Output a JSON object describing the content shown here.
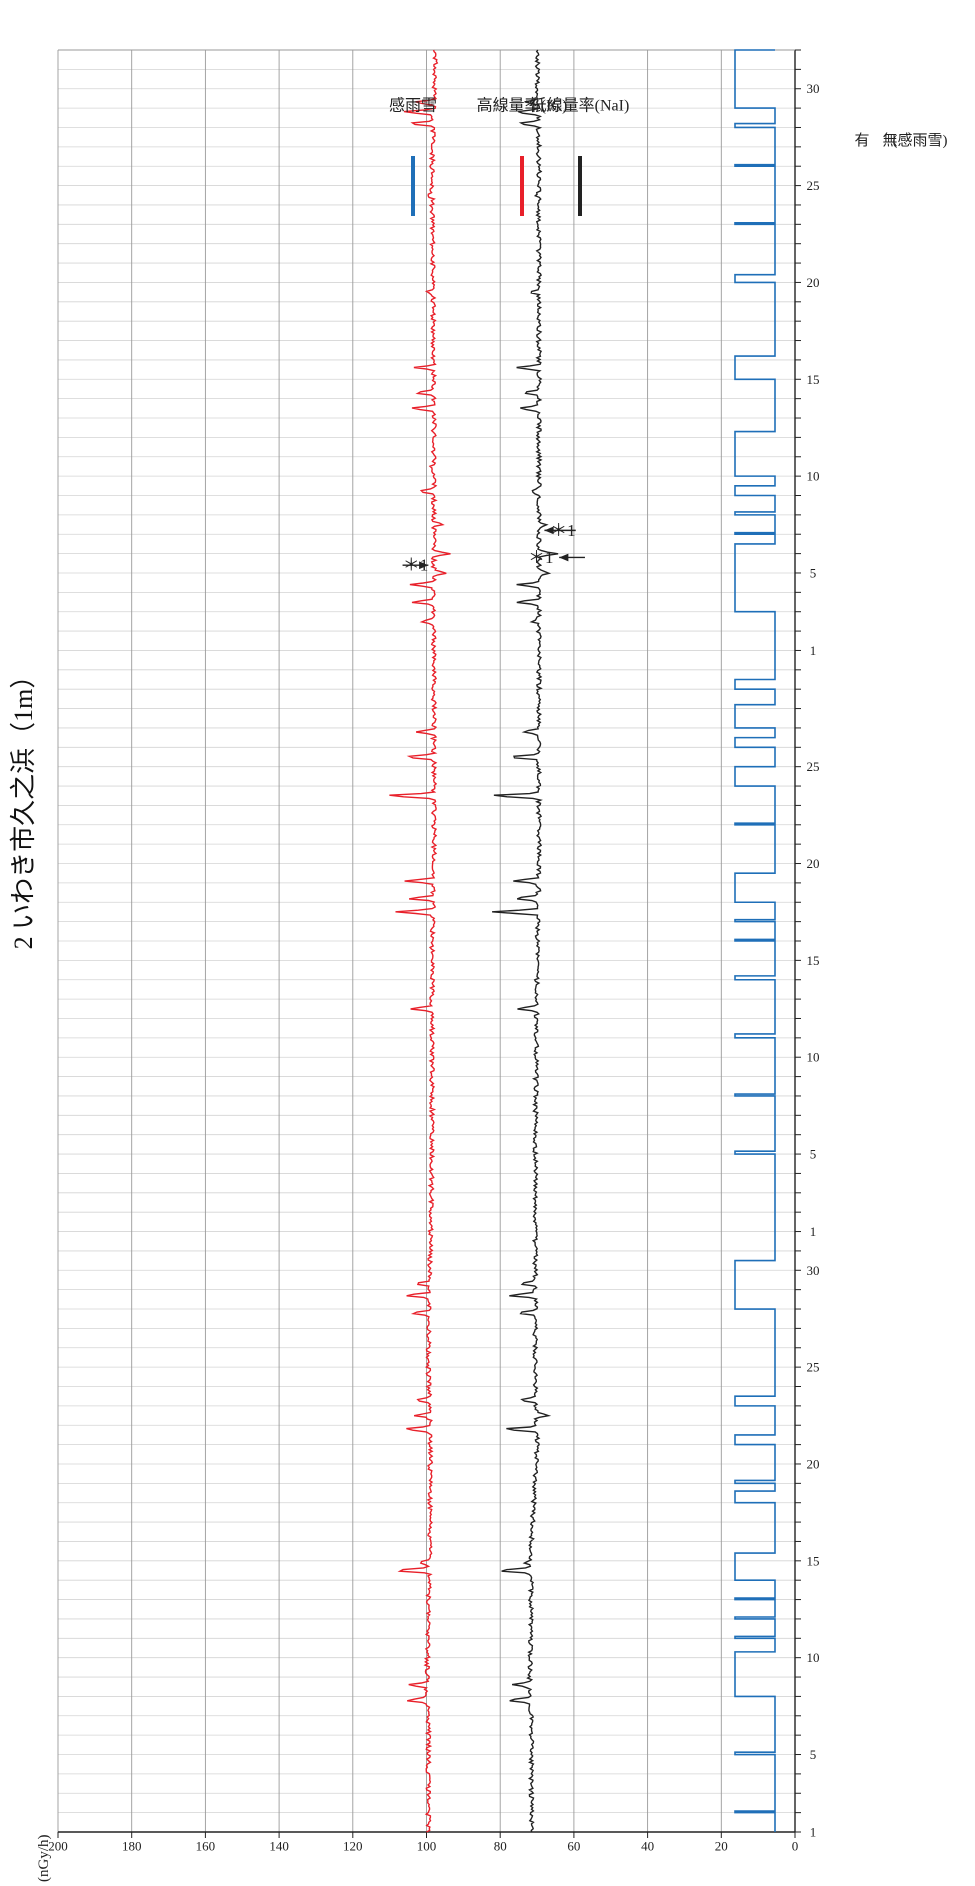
{
  "chart_data": {
    "type": "line",
    "title": "2 いわき市久之浜（1m）",
    "ylabel": "(nGy/h)",
    "ylim": [
      0,
      200
    ],
    "yticks": [
      0,
      20,
      40,
      60,
      80,
      100,
      120,
      140,
      160,
      180,
      200
    ],
    "xlim": [
      0,
      92
    ],
    "xtick_labels": [
      {
        "x": 0,
        "label": "1"
      },
      {
        "x": 4,
        "label": "5"
      },
      {
        "x": 9,
        "label": "10"
      },
      {
        "x": 14,
        "label": "15"
      },
      {
        "x": 19,
        "label": "20"
      },
      {
        "x": 24,
        "label": "25"
      },
      {
        "x": 29,
        "label": "30"
      },
      {
        "x": 31,
        "label": "1"
      },
      {
        "x": 35,
        "label": "5"
      },
      {
        "x": 40,
        "label": "10"
      },
      {
        "x": 45,
        "label": "15"
      },
      {
        "x": 50,
        "label": "20"
      },
      {
        "x": 55,
        "label": "25"
      },
      {
        "x": 61,
        "label": "1"
      },
      {
        "x": 65,
        "label": "5"
      },
      {
        "x": 70,
        "label": "10"
      },
      {
        "x": 75,
        "label": "15"
      },
      {
        "x": 80,
        "label": "20"
      },
      {
        "x": 85,
        "label": "25"
      },
      {
        "x": 90,
        "label": "30"
      }
    ],
    "grid": true,
    "legend_position": "top-right",
    "rain_indicator": {
      "title": "(感雨雪)",
      "off_label": "無",
      "on_label": "有",
      "intervals": [
        [
          1.0,
          1.08
        ],
        [
          4.0,
          4.12
        ],
        [
          7.0,
          9.3
        ],
        [
          10.0,
          10.1
        ],
        [
          11.0,
          11.1
        ],
        [
          12.0,
          12.08
        ],
        [
          13.0,
          14.4
        ],
        [
          17.0,
          17.6
        ],
        [
          18.0,
          18.15
        ],
        [
          20.0,
          20.5
        ],
        [
          22.0,
          22.5
        ],
        [
          27.0,
          29.5
        ],
        [
          35.0,
          35.15
        ],
        [
          38.0,
          38.1
        ],
        [
          41.0,
          41.2
        ],
        [
          44.0,
          44.2
        ],
        [
          46.0,
          46.08
        ],
        [
          47.0,
          47.1
        ],
        [
          48.0,
          49.5
        ],
        [
          52.0,
          52.08
        ],
        [
          54.0,
          55.0
        ],
        [
          56.0,
          56.5
        ],
        [
          57.0,
          58.2
        ],
        [
          59.0,
          59.5
        ],
        [
          63.0,
          66.5
        ],
        [
          67.0,
          67.08
        ],
        [
          68.0,
          68.15
        ],
        [
          69.0,
          69.5
        ],
        [
          70.0,
          72.3
        ],
        [
          75.0,
          76.2
        ],
        [
          80.0,
          80.4
        ],
        [
          83.0,
          83.08
        ],
        [
          86.0,
          86.08
        ],
        [
          88.0,
          88.2
        ],
        [
          89.0,
          92.0
        ]
      ]
    },
    "series": [
      {
        "name": "低線量率(NaI)",
        "color": "#222222",
        "baseline": [
          [
            0,
            71.5
          ],
          [
            6,
            71.5
          ],
          [
            7,
            72
          ],
          [
            15,
            71.5
          ],
          [
            20,
            70
          ],
          [
            24,
            70.5
          ],
          [
            30,
            70.5
          ],
          [
            35,
            70.5
          ],
          [
            45,
            70
          ],
          [
            50,
            69.5
          ],
          [
            57,
            69.5
          ],
          [
            64,
            69.5
          ],
          [
            68,
            69.5
          ],
          [
            75,
            69.5
          ],
          [
            86,
            69.5
          ],
          [
            92,
            70
          ]
        ],
        "spikes": [
          {
            "x": 6.8,
            "y": 78.5
          },
          {
            "x": 7.6,
            "y": 77
          },
          {
            "x": 13.5,
            "y": 81
          },
          {
            "x": 13.9,
            "y": 73
          },
          {
            "x": 20.8,
            "y": 79
          },
          {
            "x": 21.5,
            "y": 67
          },
          {
            "x": 22.3,
            "y": 75
          },
          {
            "x": 26.8,
            "y": 75
          },
          {
            "x": 27.7,
            "y": 78
          },
          {
            "x": 28.3,
            "y": 74
          },
          {
            "x": 42.5,
            "y": 75
          },
          {
            "x": 47.5,
            "y": 82
          },
          {
            "x": 48.2,
            "y": 76
          },
          {
            "x": 49.1,
            "y": 77
          },
          {
            "x": 53.5,
            "y": 83
          },
          {
            "x": 55.5,
            "y": 78
          },
          {
            "x": 56.8,
            "y": 74
          },
          {
            "x": 62.5,
            "y": 71
          },
          {
            "x": 63.5,
            "y": 76
          },
          {
            "x": 64.4,
            "y": 75
          },
          {
            "x": 65.0,
            "y": 66.5
          },
          {
            "x": 66.0,
            "y": 64.5
          },
          {
            "x": 67.5,
            "y": 67.5
          },
          {
            "x": 69.2,
            "y": 72
          },
          {
            "x": 70.5,
            "y": 70
          },
          {
            "x": 73.5,
            "y": 75
          },
          {
            "x": 74.3,
            "y": 74
          },
          {
            "x": 75.6,
            "y": 76
          },
          {
            "x": 79.5,
            "y": 71.5
          },
          {
            "x": 84.5,
            "y": 71
          },
          {
            "x": 88.2,
            "y": 75
          },
          {
            "x": 88.8,
            "y": 76
          },
          {
            "x": 89.3,
            "y": 73
          }
        ]
      },
      {
        "name": "高線量率(IC)",
        "color": "#e8202a",
        "baseline": [
          [
            0,
            99.5
          ],
          [
            6,
            99.5
          ],
          [
            7,
            100
          ],
          [
            15,
            99
          ],
          [
            20,
            99
          ],
          [
            24,
            99.5
          ],
          [
            30,
            99
          ],
          [
            35,
            98.5
          ],
          [
            45,
            98.5
          ],
          [
            50,
            98
          ],
          [
            57,
            98
          ],
          [
            64,
            98
          ],
          [
            68,
            98
          ],
          [
            75,
            98
          ],
          [
            86,
            98.5
          ],
          [
            92,
            97.5
          ]
        ],
        "spikes": [
          {
            "x": 6.8,
            "y": 106
          },
          {
            "x": 7.6,
            "y": 105
          },
          {
            "x": 13.5,
            "y": 109
          },
          {
            "x": 13.9,
            "y": 102
          },
          {
            "x": 20.8,
            "y": 106
          },
          {
            "x": 21.5,
            "y": 103
          },
          {
            "x": 22.3,
            "y": 103
          },
          {
            "x": 26.8,
            "y": 104
          },
          {
            "x": 27.7,
            "y": 106
          },
          {
            "x": 28.3,
            "y": 103
          },
          {
            "x": 42.5,
            "y": 104
          },
          {
            "x": 47.5,
            "y": 109
          },
          {
            "x": 48.2,
            "y": 105
          },
          {
            "x": 49.1,
            "y": 106
          },
          {
            "x": 53.5,
            "y": 111
          },
          {
            "x": 55.5,
            "y": 106
          },
          {
            "x": 56.8,
            "y": 103
          },
          {
            "x": 62.5,
            "y": 101
          },
          {
            "x": 63.5,
            "y": 104
          },
          {
            "x": 64.4,
            "y": 105
          },
          {
            "x": 65.0,
            "y": 95
          },
          {
            "x": 66.0,
            "y": 93
          },
          {
            "x": 67.5,
            "y": 96
          },
          {
            "x": 69.2,
            "y": 102
          },
          {
            "x": 70.5,
            "y": 99
          },
          {
            "x": 73.5,
            "y": 104
          },
          {
            "x": 74.3,
            "y": 103
          },
          {
            "x": 75.6,
            "y": 103
          },
          {
            "x": 79.5,
            "y": 100
          },
          {
            "x": 84.5,
            "y": 100
          },
          {
            "x": 88.2,
            "y": 105
          },
          {
            "x": 88.8,
            "y": 106
          },
          {
            "x": 89.3,
            "y": 103
          }
        ]
      }
    ],
    "legend_entries": [
      {
        "label": "低線量率(NaI)",
        "color": "#222222"
      },
      {
        "label": "高線量率(IC)",
        "color": "#e8202a"
      },
      {
        "label": "感雨雪",
        "color": "#1f6fb8"
      }
    ],
    "annotations": [
      {
        "text": "＊1",
        "x": 65.4,
        "y": 103
      },
      {
        "text": "＊1",
        "x": 67.2,
        "y": 63
      },
      {
        "text": "＊1",
        "x": 65.8,
        "y": 69
      }
    ]
  }
}
